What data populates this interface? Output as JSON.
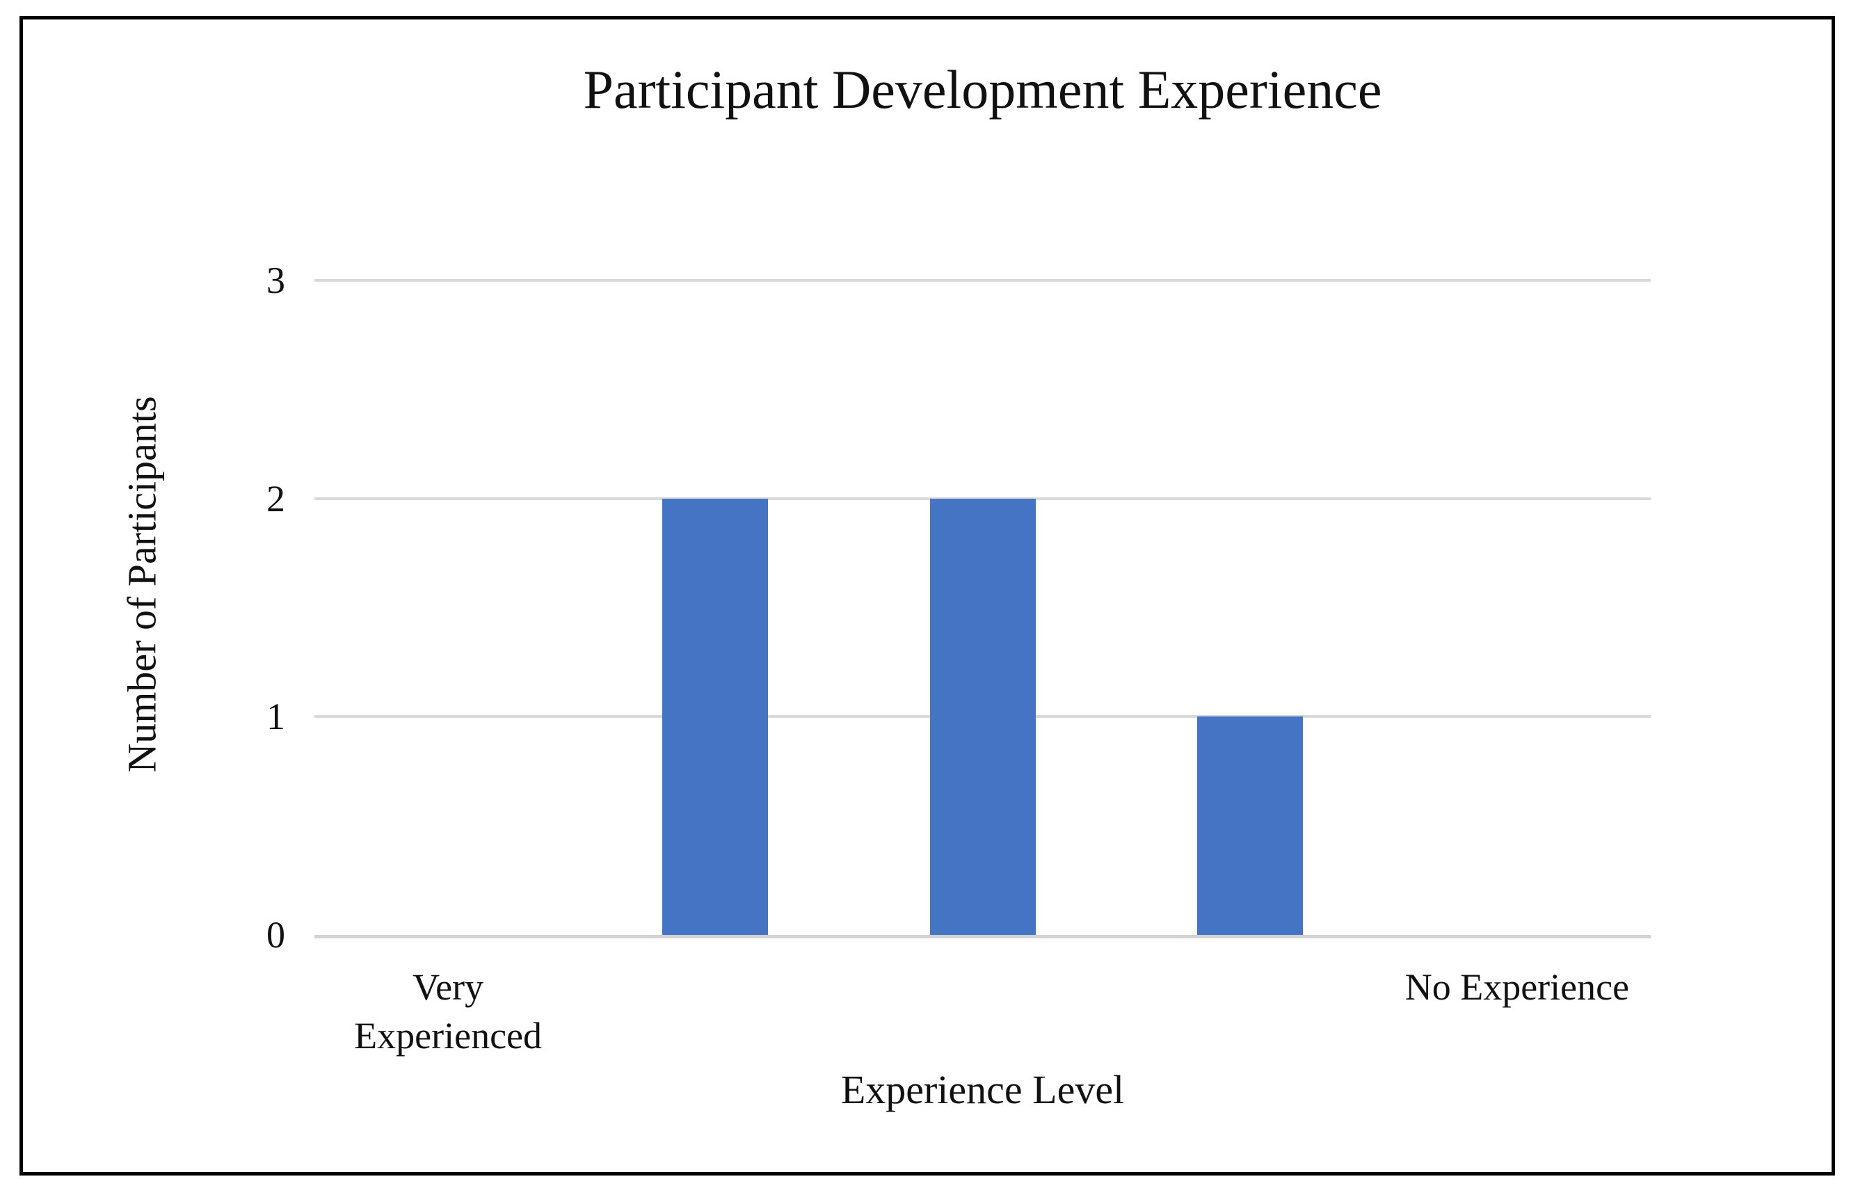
{
  "page": {
    "background": "#ffffff",
    "frame_border_color": "#000000"
  },
  "chart_data": {
    "type": "bar",
    "title": "Participant Development Experience",
    "xlabel": "Experience Level",
    "ylabel": "Number of Participants",
    "categories": [
      "Very Experienced",
      "",
      "",
      "",
      "No Experience"
    ],
    "values": [
      0,
      2,
      2,
      1,
      0
    ],
    "yticks": [
      0,
      1,
      2,
      3
    ],
    "ylim": [
      0,
      3
    ],
    "grid": true,
    "legend": false,
    "bar_color": "#4674C4",
    "gridline_color": "#D9D9D9",
    "axisline_color": "#D2D2D2",
    "text_color": "#111111"
  }
}
